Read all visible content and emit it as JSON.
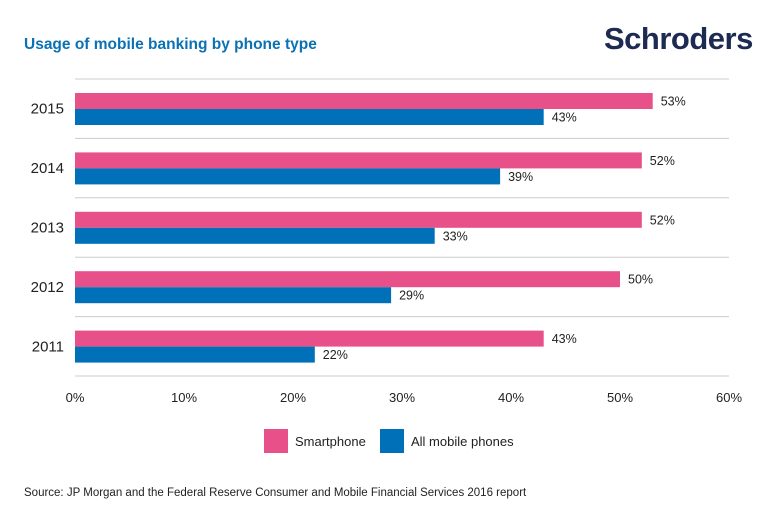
{
  "header": {
    "title": "Usage of mobile banking by phone type",
    "logo": "Schroders"
  },
  "chart_data": {
    "type": "bar",
    "orientation": "horizontal",
    "categories": [
      "2015",
      "2014",
      "2013",
      "2012",
      "2011"
    ],
    "series": [
      {
        "name": "Smartphone",
        "color": "#e8508a",
        "values": [
          53,
          52,
          52,
          50,
          43
        ]
      },
      {
        "name": "All mobile phones",
        "color": "#0071b9",
        "values": [
          43,
          39,
          33,
          29,
          22
        ]
      }
    ],
    "value_labels": [
      [
        "53%",
        "52%",
        "52%",
        "50%",
        "43%"
      ],
      [
        "43%",
        "39%",
        "33%",
        "29%",
        "22%"
      ]
    ],
    "xlim": [
      0,
      60
    ],
    "xticks": [
      0,
      10,
      20,
      30,
      40,
      50,
      60
    ],
    "xtick_labels": [
      "0%",
      "10%",
      "20%",
      "30%",
      "40%",
      "50%",
      "60%"
    ],
    "grid": "horizontal separators",
    "legend_position": "bottom-center"
  },
  "legend": {
    "items": [
      {
        "label": "Smartphone",
        "color": "#e8508a"
      },
      {
        "label": "All mobile phones",
        "color": "#0071b9"
      }
    ]
  },
  "footer": {
    "source": "Source: JP Morgan and the Federal Reserve Consumer and Mobile Financial Services 2016 report"
  }
}
